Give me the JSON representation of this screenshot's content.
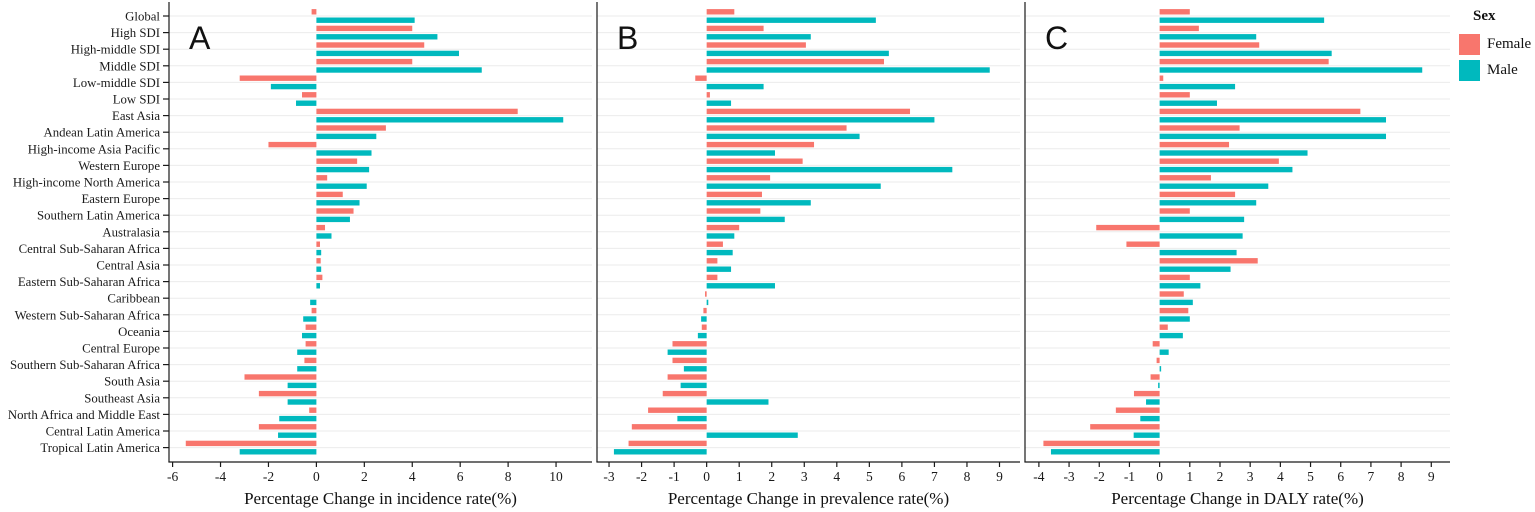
{
  "legend": {
    "title": "Sex",
    "items": [
      {
        "label": "Female",
        "color": "#F8766D"
      },
      {
        "label": "Male",
        "color": "#00B9BE"
      }
    ]
  },
  "chart_data": {
    "type": "bar",
    "orientation": "horizontal",
    "grouping": "dodged-by-sex",
    "grid": "horizontal-major-lines",
    "legend_position": "right",
    "categories": [
      "Global",
      "High SDI",
      "High-middle SDI",
      "Middle SDI",
      "Low-middle SDI",
      "Low SDI",
      "East Asia",
      "Andean Latin America",
      "High-income Asia Pacific",
      "Western Europe",
      "High-income North America",
      "Eastern Europe",
      "Southern Latin America",
      "Australasia",
      "Central Sub-Saharan Africa",
      "Central Asia",
      "Eastern Sub-Saharan Africa",
      "Caribbean",
      "Western Sub-Saharan Africa",
      "Oceania",
      "Central Europe",
      "Southern Sub-Saharan Africa",
      "South Asia",
      "Southeast Asia",
      "North Africa and Middle East",
      "Central Latin America",
      "Tropical Latin America"
    ],
    "panels": [
      {
        "letter": "A",
        "xlabel": "Percentage Change in incidence rate(%)",
        "xticks": [
          -6,
          -4,
          -2,
          0,
          2,
          4,
          6,
          8,
          10
        ],
        "xlim": [
          -6.15,
          11.5
        ],
        "series": [
          {
            "name": "Female",
            "color": "#F8766D",
            "values": [
              -0.2,
              4.0,
              4.5,
              4.0,
              -3.2,
              -0.6,
              8.4,
              2.9,
              -2.0,
              1.7,
              0.45,
              1.1,
              1.55,
              0.36,
              0.15,
              0.18,
              0.25,
              0.0,
              -0.2,
              -0.45,
              -0.45,
              -0.5,
              -3.0,
              -2.4,
              -0.3,
              -2.4,
              -5.45
            ]
          },
          {
            "name": "Male",
            "color": "#00B9BE",
            "values": [
              4.1,
              5.05,
              5.95,
              6.9,
              -1.9,
              -0.85,
              10.3,
              2.5,
              2.3,
              2.2,
              2.1,
              1.8,
              1.4,
              0.63,
              0.2,
              0.2,
              0.15,
              -0.26,
              -0.55,
              -0.6,
              -0.8,
              -0.8,
              -1.2,
              -1.2,
              -1.55,
              -1.6,
              -3.2
            ]
          }
        ]
      },
      {
        "letter": "B",
        "xlabel": "Percentage Change in prevalence rate(%)",
        "xticks": [
          -3,
          -2,
          -1,
          0,
          1,
          2,
          3,
          4,
          5,
          6,
          7,
          8,
          9
        ],
        "xlim": [
          -3.37,
          9.63
        ],
        "series": [
          {
            "name": "Female",
            "color": "#F8766D",
            "values": [
              0.85,
              1.75,
              3.05,
              5.45,
              -0.35,
              0.1,
              6.25,
              4.3,
              3.3,
              2.95,
              1.95,
              1.7,
              1.65,
              1.0,
              0.5,
              0.33,
              0.33,
              -0.05,
              -0.1,
              -0.15,
              -1.05,
              -1.05,
              -1.2,
              -1.35,
              -1.8,
              -2.3,
              -2.4
            ]
          },
          {
            "name": "Male",
            "color": "#00B9BE",
            "values": [
              5.2,
              3.2,
              5.6,
              8.7,
              1.75,
              0.75,
              7.0,
              4.7,
              2.1,
              7.55,
              5.35,
              3.2,
              2.4,
              0.85,
              0.8,
              0.75,
              2.1,
              0.05,
              -0.17,
              -0.27,
              -1.2,
              -0.7,
              -0.8,
              1.9,
              -0.9,
              2.8,
              -2.85
            ]
          }
        ]
      },
      {
        "letter": "C",
        "xlabel": "Percentage Change in DALY rate(%)",
        "xticks": [
          -4,
          -3,
          -2,
          -1,
          0,
          1,
          2,
          3,
          4,
          5,
          6,
          7,
          8,
          9
        ],
        "xlim": [
          -4.46,
          9.62
        ],
        "series": [
          {
            "name": "Female",
            "color": "#F8766D",
            "values": [
              1.0,
              1.3,
              3.3,
              5.6,
              0.12,
              1.0,
              6.65,
              2.65,
              2.3,
              3.95,
              1.7,
              2.5,
              1.0,
              -2.1,
              -1.1,
              3.25,
              1.0,
              0.8,
              0.95,
              0.27,
              -0.23,
              -0.1,
              -0.3,
              -0.85,
              -1.45,
              -2.3,
              -3.85
            ]
          },
          {
            "name": "Male",
            "color": "#00B9BE",
            "values": [
              5.45,
              3.2,
              5.7,
              8.7,
              2.5,
              1.9,
              7.5,
              7.5,
              4.9,
              4.4,
              3.6,
              3.2,
              2.8,
              2.75,
              2.55,
              2.35,
              1.35,
              1.1,
              1.0,
              0.77,
              0.3,
              0.05,
              -0.05,
              -0.45,
              -0.64,
              -0.86,
              -3.6
            ]
          }
        ]
      }
    ]
  }
}
